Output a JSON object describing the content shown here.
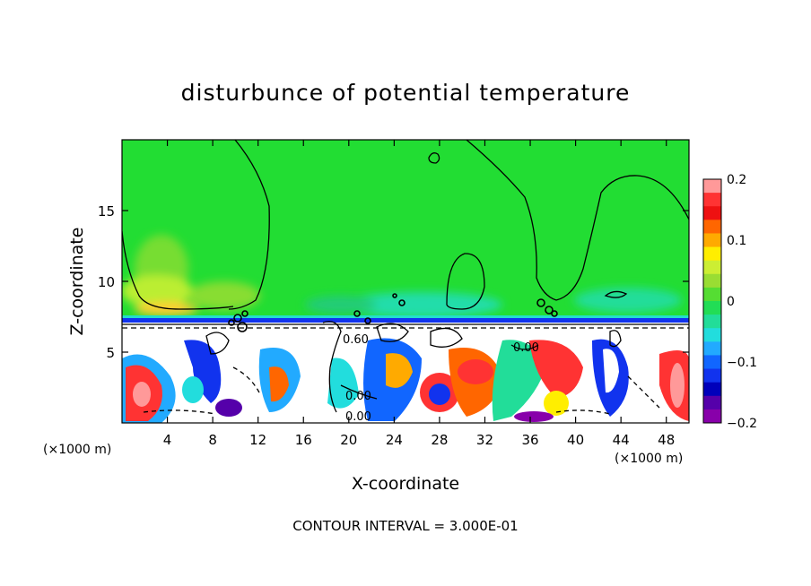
{
  "chart_data": {
    "type": "heatmap",
    "title": "disturbunce of potential temperature",
    "xlabel": "X-coordinate",
    "ylabel": "Z-coordinate",
    "x_unit_left": "(×1000 m)",
    "x_unit_right": "(×1000 m)",
    "xlim": [
      0,
      50
    ],
    "ylim": [
      0,
      20
    ],
    "xticks": [
      4,
      8,
      12,
      16,
      20,
      24,
      28,
      32,
      36,
      40,
      44,
      48
    ],
    "yticks": [
      5,
      10,
      15
    ],
    "colorbar": {
      "range": [
        -0.2,
        0.2
      ],
      "tick_labels": [
        "0.2",
        "0.1",
        "0",
        "−0.1",
        "−0.2"
      ],
      "tick_values": [
        0.2,
        0.1,
        0,
        -0.1,
        -0.2
      ],
      "colors": [
        "#ff9999",
        "#ff3333",
        "#ee1111",
        "#ff6600",
        "#ffaa00",
        "#ffee00",
        "#ccee33",
        "#99dd33",
        "#55dd33",
        "#22dd55",
        "#22dd99",
        "#22dddd",
        "#22aaff",
        "#1166ff",
        "#1133ee",
        "#0000bb",
        "#5500aa",
        "#8800aa"
      ]
    },
    "contour_labels": [
      "0.60",
      "0.00",
      "0.00",
      "0.00"
    ],
    "background_value": 0.0,
    "grid": false,
    "annotation": "CONTOUR INTERVAL = 3.000E-01"
  }
}
